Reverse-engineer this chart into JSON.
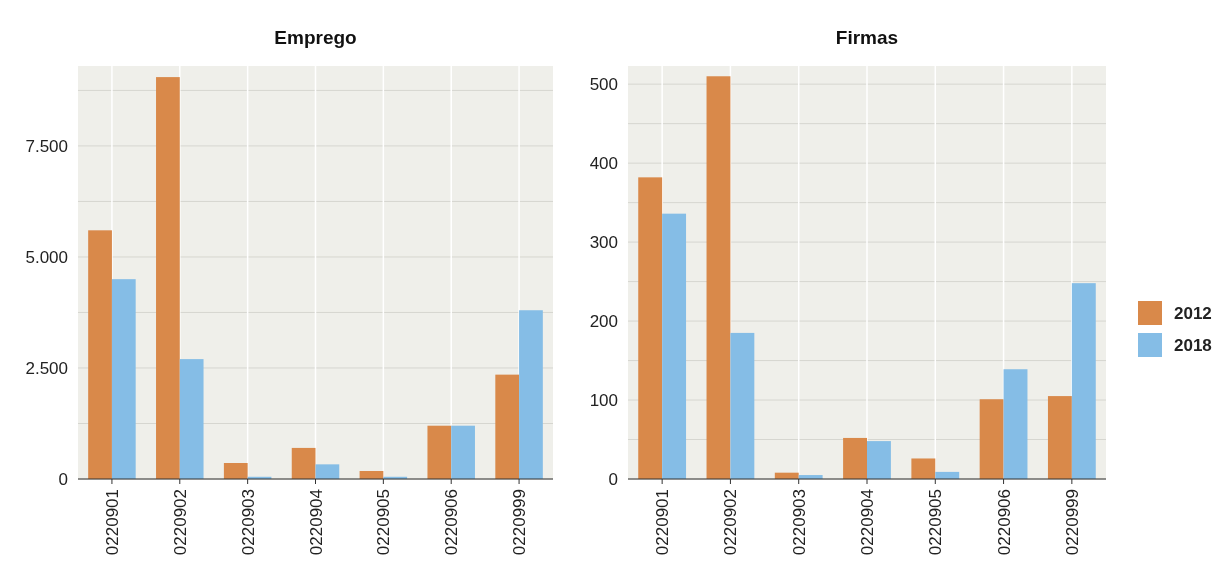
{
  "chart_data": [
    {
      "type": "bar",
      "title": "Emprego",
      "categories": [
        "0220901",
        "0220902",
        "0220903",
        "0220904",
        "0220905",
        "0220906",
        "0220999"
      ],
      "series": [
        {
          "color": "#d9894a",
          "values": [
            5600,
            9050,
            360,
            700,
            180,
            1200,
            2350
          ]
        },
        {
          "color": "#85bde6",
          "values": [
            4500,
            2700,
            50,
            330,
            50,
            1200,
            3800
          ]
        }
      ],
      "ylim": [
        0,
        9300
      ],
      "yticks": [
        0,
        {
          "value": 1250,
          "label": null
        },
        {
          "value": 2500,
          "label": "2.500"
        },
        {
          "value": 3750,
          "label": null
        },
        {
          "value": 5000,
          "label": "5.000"
        },
        {
          "value": 6250,
          "label": null
        },
        {
          "value": 7500,
          "label": "7.500"
        },
        {
          "value": 8750,
          "label": null
        }
      ],
      "grid": true,
      "legend": false
    },
    {
      "type": "bar",
      "title": "Firmas",
      "categories": [
        "0220901",
        "0220902",
        "0220903",
        "0220904",
        "0220905",
        "0220906",
        "0220999"
      ],
      "series": [
        {
          "name": "2012",
          "color": "#d9894a",
          "values": [
            382,
            510,
            8,
            52,
            26,
            101,
            105
          ]
        },
        {
          "name": "2018",
          "color": "#85bde6",
          "values": [
            336,
            185,
            5,
            48,
            9,
            139,
            248
          ]
        }
      ],
      "ylim": [
        0,
        523
      ],
      "yticks": [
        0,
        {
          "value": 50,
          "label": null
        },
        100,
        {
          "value": 150,
          "label": null
        },
        200,
        {
          "value": 250,
          "label": null
        },
        300,
        {
          "value": 350,
          "label": null
        },
        400,
        {
          "value": 450,
          "label": null
        },
        500
      ],
      "grid": true,
      "legend": "right"
    }
  ]
}
